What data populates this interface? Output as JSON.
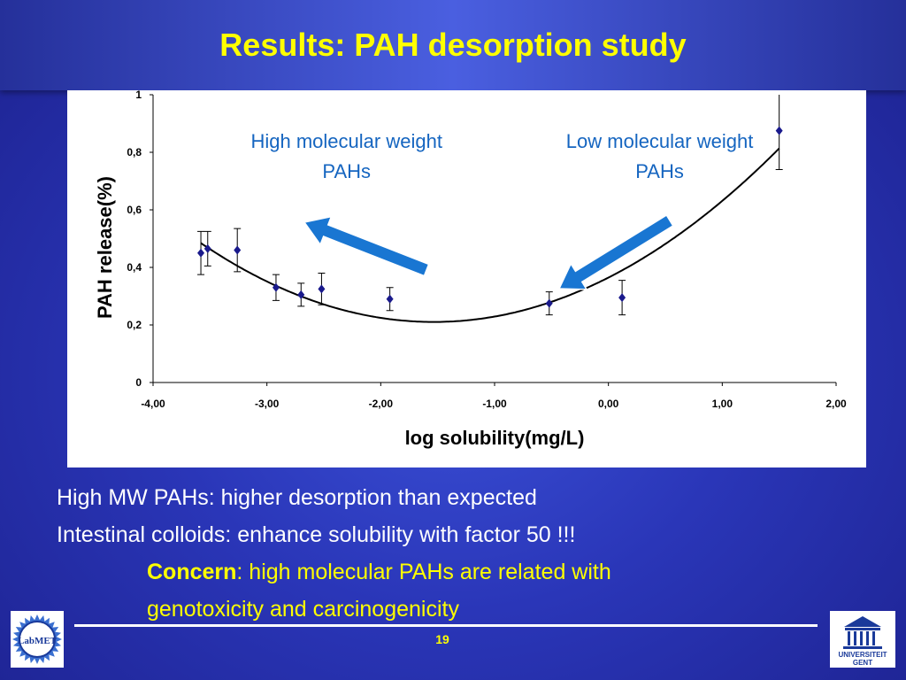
{
  "slide": {
    "title": "Results: PAH desorption study",
    "page_number": "19",
    "body": {
      "line1": "High MW PAHs: higher desorption than expected",
      "line2": "Intestinal colloids: enhance solubility with factor 50 !!!",
      "concern_label": "Concern",
      "concern_rest": ": high molecular PAHs are related with",
      "line4": "genotoxicity and carcinogenicity"
    },
    "logos": {
      "left_text": "LabMET",
      "right_text_1": "UNIVERSITEIT",
      "right_text_2": "GENT"
    }
  },
  "colors": {
    "title": "#ffff00",
    "marker": "#1a1a8c",
    "annotation": "#1565c0",
    "arrow": "#1976d2"
  },
  "chart_data": {
    "type": "scatter",
    "xlabel": "log solubility(mg/L)",
    "ylabel": "PAH release(%)",
    "xlim": [
      -4,
      2
    ],
    "ylim": [
      0,
      1
    ],
    "x_ticks": [
      "-4,00",
      "-3,00",
      "-2,00",
      "-1,00",
      "0,00",
      "1,00",
      "2,00"
    ],
    "y_ticks": [
      "0",
      "0,2",
      "0,4",
      "0,6",
      "0,8",
      "1"
    ],
    "points": [
      {
        "x": -3.58,
        "y": 0.45,
        "err": 0.075
      },
      {
        "x": -3.52,
        "y": 0.465,
        "err": 0.06
      },
      {
        "x": -3.26,
        "y": 0.46,
        "err": 0.075
      },
      {
        "x": -2.92,
        "y": 0.33,
        "err": 0.045
      },
      {
        "x": -2.7,
        "y": 0.305,
        "err": 0.04
      },
      {
        "x": -2.52,
        "y": 0.325,
        "err": 0.055
      },
      {
        "x": -1.92,
        "y": 0.29,
        "err": 0.04
      },
      {
        "x": -0.52,
        "y": 0.275,
        "err": 0.04
      },
      {
        "x": 0.12,
        "y": 0.295,
        "err": 0.06
      },
      {
        "x": 1.5,
        "y": 0.875,
        "err": 0.135
      }
    ],
    "trend": {
      "type": "polynomial-2",
      "a": 0.0655,
      "b": 0.201,
      "c": 0.3646
    },
    "annotations": [
      {
        "text_lines": [
          "High molecular weight",
          "PAHs"
        ],
        "at_x": -2.3,
        "arrow_toward": "left"
      },
      {
        "text_lines": [
          "Low molecular weight",
          "PAHs"
        ],
        "at_x": 0.45,
        "arrow_toward": "left"
      }
    ],
    "grid": false,
    "legend": "none"
  }
}
